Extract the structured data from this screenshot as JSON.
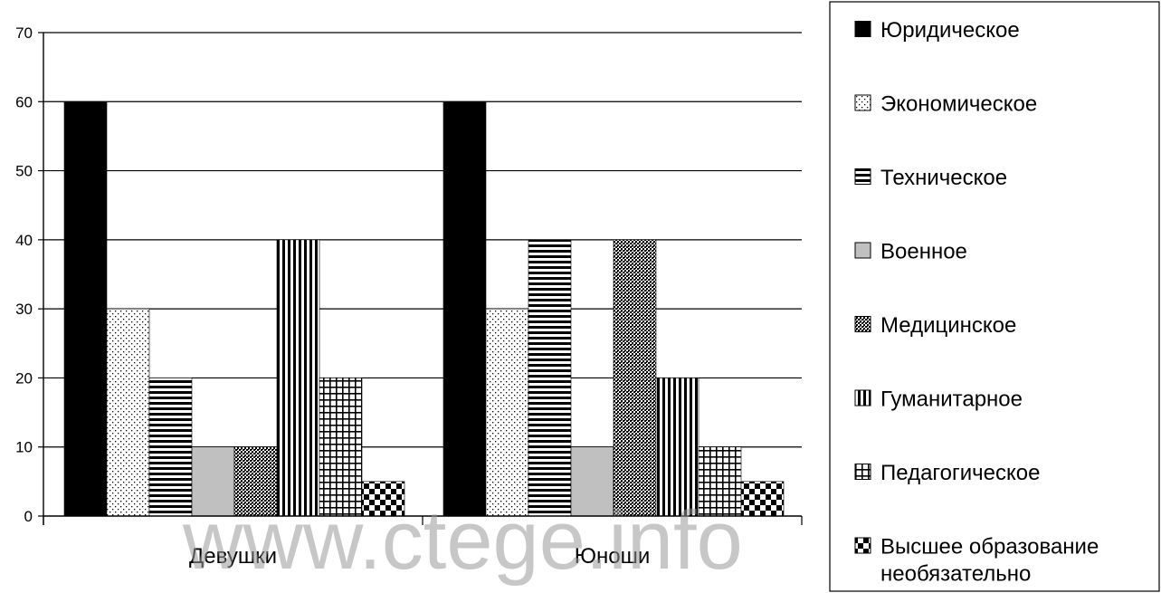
{
  "watermark": "www.ctege.info",
  "chart_data": {
    "type": "bar",
    "title": "",
    "xlabel": "",
    "ylabel": "",
    "ylim": [
      0,
      70
    ],
    "yticks": [
      0,
      10,
      20,
      30,
      40,
      50,
      60,
      70
    ],
    "grid": true,
    "legend_position": "right",
    "categories": [
      "Девушки",
      "Юноши"
    ],
    "series": [
      {
        "name": "Юридическое",
        "values": [
          60,
          60
        ],
        "pattern": "solid-black"
      },
      {
        "name": "Экономическое",
        "values": [
          30,
          30
        ],
        "pattern": "dots"
      },
      {
        "name": "Техническое",
        "values": [
          20,
          40
        ],
        "pattern": "horizontal-stripes"
      },
      {
        "name": "Военное",
        "values": [
          10,
          10
        ],
        "pattern": "solid-gray"
      },
      {
        "name": "Медицинское",
        "values": [
          10,
          40
        ],
        "pattern": "dense-crosshatch"
      },
      {
        "name": "Гуманитарное",
        "values": [
          40,
          20
        ],
        "pattern": "vertical-stripes"
      },
      {
        "name": "Педагогическое",
        "values": [
          20,
          10
        ],
        "pattern": "grid"
      },
      {
        "name": "Высшее образование необязательно",
        "legend_lines": [
          "Высшее образование",
          "необязательно"
        ],
        "values": [
          5,
          5
        ],
        "pattern": "checkerboard"
      }
    ]
  }
}
